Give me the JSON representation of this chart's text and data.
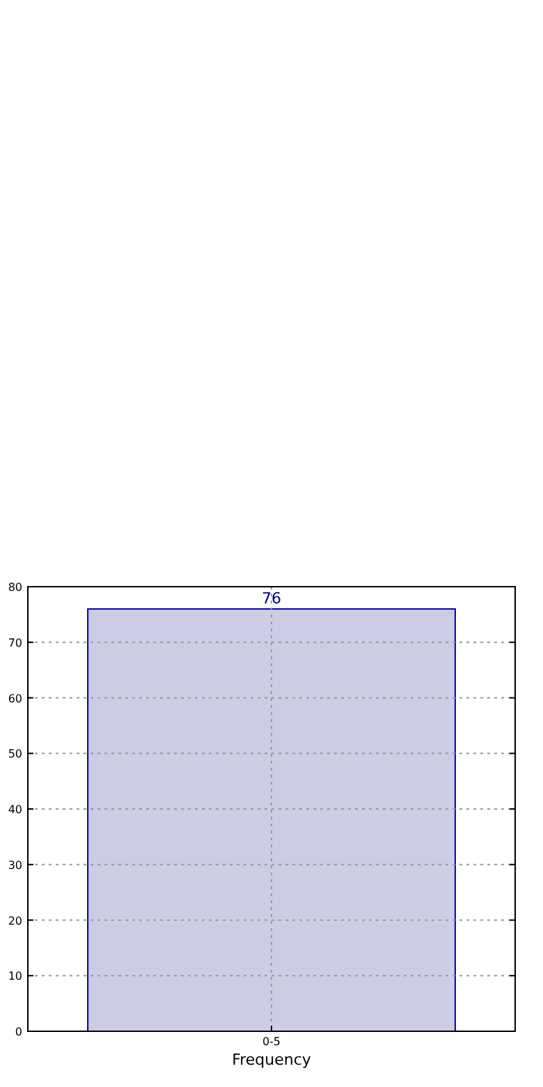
{
  "chart_data": {
    "type": "bar",
    "xlabel": "Frequency",
    "categories": [
      "0-5"
    ],
    "series": [
      {
        "color": "#cccce5",
        "values": [
          76
        ]
      }
    ],
    "ylim": [
      0,
      80
    ],
    "yticks": [
      0,
      10,
      20,
      30,
      40,
      50,
      60,
      70,
      80
    ],
    "grid": true,
    "data_labels": true
  }
}
